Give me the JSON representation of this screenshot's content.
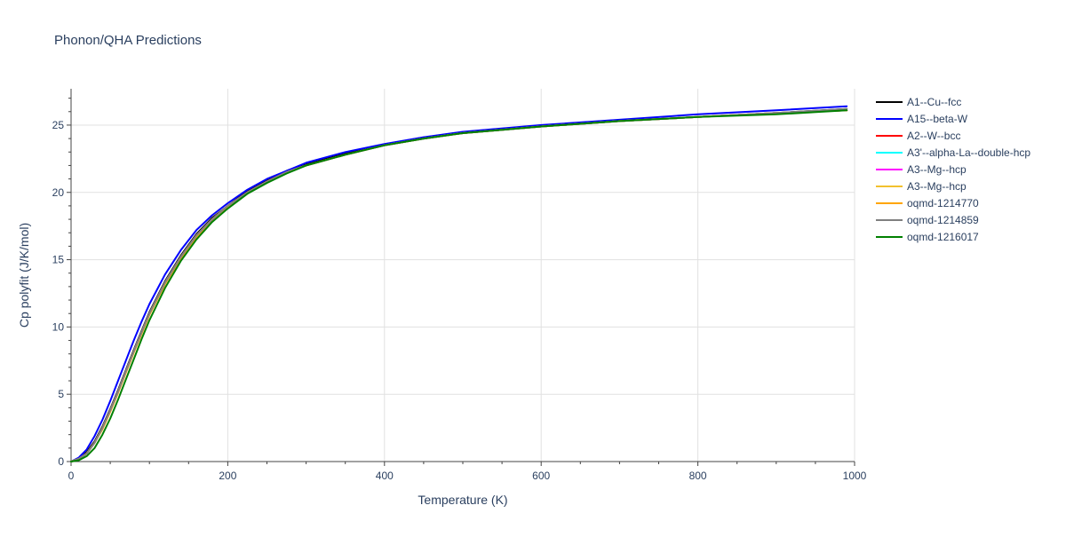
{
  "chart_data": {
    "type": "line",
    "title": "Phonon/QHA Predictions",
    "xlabel": "Temperature (K)",
    "ylabel": "Cp polyfit (J/K/mol)",
    "xlim": [
      0,
      1000
    ],
    "ylim": [
      0,
      27.7
    ],
    "xticks": [
      0,
      200,
      400,
      600,
      800,
      1000
    ],
    "yticks": [
      0,
      5,
      10,
      15,
      20,
      25
    ],
    "grid": true,
    "legend_position": "right",
    "x": [
      0,
      10,
      20,
      30,
      40,
      50,
      60,
      70,
      80,
      90,
      100,
      120,
      140,
      160,
      180,
      200,
      225,
      250,
      275,
      300,
      350,
      400,
      450,
      500,
      600,
      700,
      800,
      900,
      990
    ],
    "series": [
      {
        "name": "A1--Cu--fcc",
        "color": "#000000",
        "values": [
          0,
          0.2,
          0.7,
          1.5,
          2.6,
          3.9,
          5.3,
          6.8,
          8.3,
          9.7,
          11.1,
          13.4,
          15.3,
          16.9,
          18.1,
          19.0,
          20.1,
          20.9,
          21.6,
          22.1,
          22.9,
          23.5,
          24.0,
          24.4,
          24.9,
          25.3,
          25.6,
          25.9,
          26.2
        ]
      },
      {
        "name": "A15--beta-W",
        "color": "#0000ff",
        "values": [
          0,
          0.3,
          0.9,
          1.9,
          3.1,
          4.5,
          6.0,
          7.5,
          9.0,
          10.4,
          11.7,
          13.9,
          15.7,
          17.2,
          18.3,
          19.2,
          20.2,
          21.0,
          21.6,
          22.2,
          23.0,
          23.6,
          24.1,
          24.5,
          25.0,
          25.4,
          25.8,
          26.1,
          26.4
        ]
      },
      {
        "name": "A2--W--bcc",
        "color": "#ff0000",
        "values": [
          0,
          0.2,
          0.6,
          1.4,
          2.5,
          3.8,
          5.2,
          6.7,
          8.2,
          9.6,
          11.0,
          13.3,
          15.2,
          16.8,
          18.0,
          19.0,
          20.0,
          20.8,
          21.5,
          22.0,
          22.8,
          23.5,
          24.0,
          24.4,
          24.9,
          25.3,
          25.6,
          25.9,
          26.1
        ]
      },
      {
        "name": "A3'--alpha-La--double-hcp",
        "color": "#00ffff",
        "values": [
          0,
          0.2,
          0.6,
          1.4,
          2.5,
          3.8,
          5.2,
          6.7,
          8.2,
          9.6,
          11.0,
          13.3,
          15.2,
          16.8,
          18.0,
          19.0,
          20.0,
          20.8,
          21.5,
          22.0,
          22.8,
          23.5,
          24.0,
          24.4,
          24.9,
          25.3,
          25.6,
          25.9,
          26.1
        ]
      },
      {
        "name": "A3--Mg--hcp",
        "color": "#ff00ff",
        "values": [
          0,
          0.2,
          0.6,
          1.4,
          2.5,
          3.8,
          5.2,
          6.7,
          8.2,
          9.6,
          11.0,
          13.3,
          15.2,
          16.8,
          18.0,
          19.0,
          20.0,
          20.8,
          21.5,
          22.0,
          22.8,
          23.5,
          24.0,
          24.4,
          24.9,
          25.3,
          25.6,
          25.9,
          26.1
        ]
      },
      {
        "name": "A3--Mg--hcp",
        "color": "#f2c12e",
        "values": [
          0,
          0.2,
          0.6,
          1.4,
          2.5,
          3.8,
          5.2,
          6.7,
          8.2,
          9.6,
          11.0,
          13.3,
          15.2,
          16.8,
          18.0,
          19.0,
          20.0,
          20.8,
          21.5,
          22.0,
          22.8,
          23.5,
          24.0,
          24.4,
          24.9,
          25.3,
          25.6,
          25.9,
          26.1
        ]
      },
      {
        "name": "oqmd-1214770",
        "color": "#ffa500",
        "values": [
          0,
          0.2,
          0.6,
          1.4,
          2.4,
          3.7,
          5.1,
          6.6,
          8.1,
          9.5,
          10.9,
          13.2,
          15.1,
          16.7,
          17.9,
          18.9,
          20.0,
          20.8,
          21.5,
          22.0,
          22.8,
          23.5,
          24.0,
          24.4,
          24.9,
          25.3,
          25.6,
          25.9,
          26.1
        ]
      },
      {
        "name": "oqmd-1214859",
        "color": "#808080",
        "values": [
          0,
          0.2,
          0.6,
          1.4,
          2.5,
          3.8,
          5.2,
          6.7,
          8.2,
          9.6,
          11.0,
          13.3,
          15.2,
          16.8,
          18.0,
          19.0,
          20.0,
          20.8,
          21.5,
          22.0,
          22.8,
          23.5,
          24.0,
          24.4,
          24.9,
          25.3,
          25.6,
          25.9,
          26.2
        ]
      },
      {
        "name": "oqmd-1216017",
        "color": "#008000",
        "values": [
          0,
          0.1,
          0.4,
          1.0,
          2.0,
          3.2,
          4.6,
          6.1,
          7.6,
          9.1,
          10.5,
          12.9,
          14.9,
          16.5,
          17.8,
          18.8,
          19.9,
          20.7,
          21.4,
          22.0,
          22.8,
          23.5,
          24.0,
          24.4,
          24.9,
          25.3,
          25.6,
          25.8,
          26.1
        ]
      }
    ]
  }
}
